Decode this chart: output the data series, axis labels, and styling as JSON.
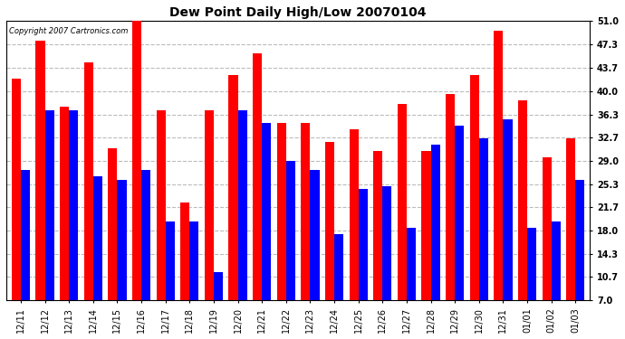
{
  "title": "Dew Point Daily High/Low 20070104",
  "copyright": "Copyright 2007 Cartronics.com",
  "categories": [
    "12/11",
    "12/12",
    "12/13",
    "12/14",
    "12/15",
    "12/16",
    "12/17",
    "12/18",
    "12/19",
    "12/20",
    "12/21",
    "12/22",
    "12/23",
    "12/24",
    "12/25",
    "12/26",
    "12/27",
    "12/28",
    "12/29",
    "12/30",
    "12/31",
    "01/01",
    "01/02",
    "01/03"
  ],
  "high_values": [
    42.0,
    48.0,
    37.5,
    44.5,
    31.0,
    52.0,
    37.0,
    22.5,
    37.0,
    42.5,
    46.0,
    35.0,
    35.0,
    32.0,
    34.0,
    30.5,
    38.0,
    30.5,
    39.5,
    42.5,
    49.5,
    38.5,
    29.5,
    32.5
  ],
  "low_values": [
    27.5,
    37.0,
    37.0,
    26.5,
    26.0,
    27.5,
    19.5,
    19.5,
    11.5,
    37.0,
    35.0,
    29.0,
    27.5,
    17.5,
    24.5,
    25.0,
    18.5,
    31.5,
    34.5,
    32.5,
    35.5,
    18.5,
    19.5,
    26.0
  ],
  "high_color": "#ff0000",
  "low_color": "#0000ff",
  "yticks": [
    7.0,
    10.7,
    14.3,
    18.0,
    21.7,
    25.3,
    29.0,
    32.7,
    36.3,
    40.0,
    43.7,
    47.3,
    51.0
  ],
  "ymin": 7.0,
  "ymax": 51.0,
  "bg_color": "#ffffff",
  "grid_color": "#bbbbbb",
  "bar_width": 0.38,
  "title_fontsize": 10,
  "tick_fontsize": 7,
  "ytick_fontsize": 7
}
